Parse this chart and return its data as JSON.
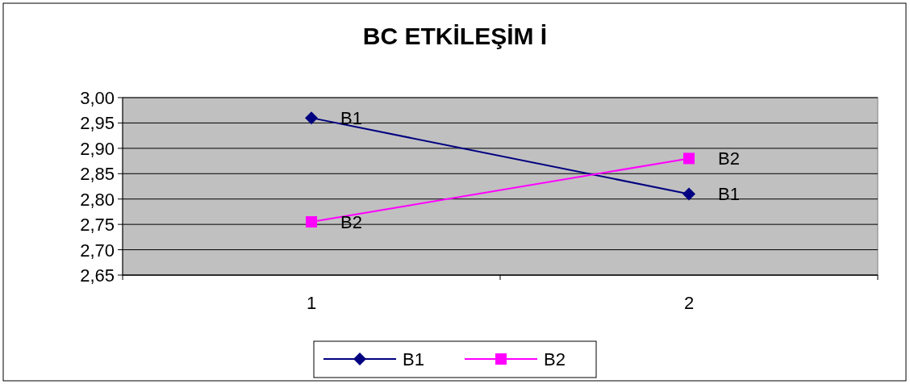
{
  "chart_data": {
    "type": "line",
    "title": "BC ETKİLEŞİM İ",
    "categories": [
      "1",
      "2"
    ],
    "series": [
      {
        "name": "B1",
        "color": "#000080",
        "values": [
          2.96,
          2.81
        ],
        "marker": "diamond"
      },
      {
        "name": "B2",
        "color": "#ff00ff",
        "values": [
          2.755,
          2.88
        ],
        "marker": "square"
      }
    ],
    "ylim": [
      2.65,
      3.0
    ],
    "yticks": [
      {
        "value": 2.65,
        "label": "2,65"
      },
      {
        "value": 2.7,
        "label": "2,70"
      },
      {
        "value": 2.75,
        "label": "2,75"
      },
      {
        "value": 2.8,
        "label": "2,80"
      },
      {
        "value": 2.85,
        "label": "2,85"
      },
      {
        "value": 2.9,
        "label": "2,90"
      },
      {
        "value": 2.95,
        "label": "2,95"
      },
      {
        "value": 3.0,
        "label": "3,00"
      }
    ],
    "grid": "y",
    "legend": "bottom",
    "line_style": "solid"
  }
}
